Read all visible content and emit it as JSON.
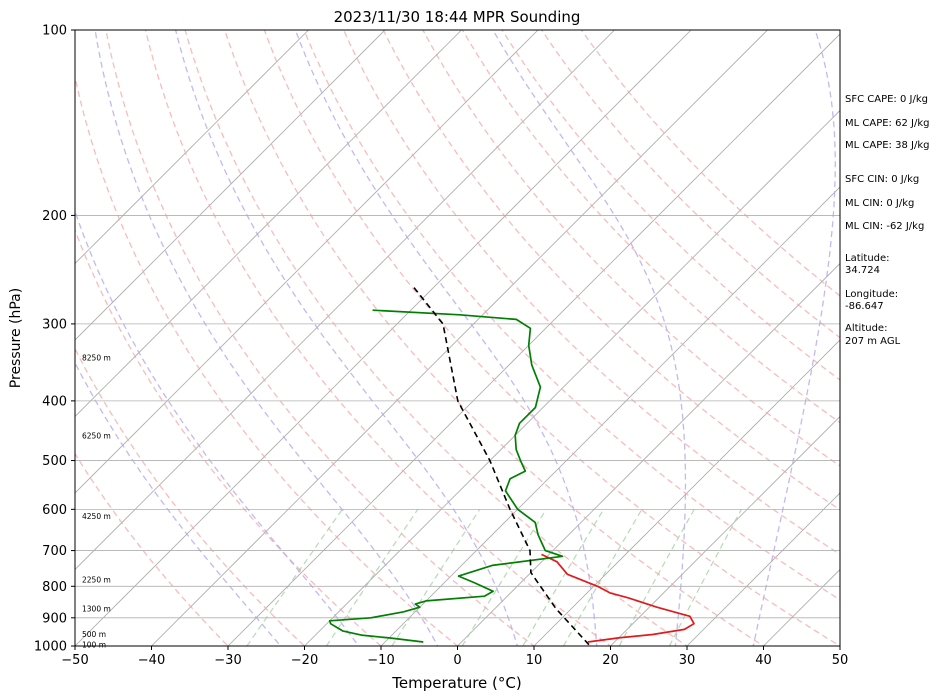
{
  "chart_data": {
    "type": "line",
    "title": "2023/11/30 18:44 MPR Sounding",
    "xlabel": "Temperature (°C)",
    "ylabel": "Pressure (hPa)",
    "xlim": [
      -50,
      50
    ],
    "ylim": [
      1000,
      100
    ],
    "y_scale": "log",
    "x_ticks": [
      "−50",
      "−40",
      "−30",
      "−20",
      "−10",
      "0",
      "10",
      "20",
      "30",
      "40",
      "50"
    ],
    "y_ticks": [
      "1000",
      "900",
      "800",
      "700",
      "600",
      "500",
      "400",
      "300",
      "200",
      "100"
    ],
    "grid": true,
    "height_labels": [
      {
        "text": "100 m",
        "p": 995
      },
      {
        "text": "500 m",
        "p": 957
      },
      {
        "text": "1300 m",
        "p": 870
      },
      {
        "text": "2250 m",
        "p": 780
      },
      {
        "text": "4250 m",
        "p": 615
      },
      {
        "text": "6250 m",
        "p": 455
      },
      {
        "text": "8250 m",
        "p": 340
      }
    ],
    "series": [
      {
        "role": "temperature",
        "color": "#e31a1c",
        "points": [
          [
            16.5,
            985
          ],
          [
            20,
            970
          ],
          [
            24,
            958
          ],
          [
            27.5,
            940
          ],
          [
            28,
            920
          ],
          [
            26.5,
            895
          ],
          [
            21,
            865
          ],
          [
            16,
            835
          ],
          [
            13,
            820
          ],
          [
            10.5,
            800
          ],
          [
            5,
            765
          ],
          [
            2,
            730
          ],
          [
            -1,
            710
          ]
        ]
      },
      {
        "role": "dewpoint",
        "color": "#007f00",
        "points": [
          [
            -5,
            985
          ],
          [
            -10,
            970
          ],
          [
            -14,
            960
          ],
          [
            -17,
            945
          ],
          [
            -19.5,
            920
          ],
          [
            -20,
            910
          ],
          [
            -15,
            900
          ],
          [
            -11.5,
            880
          ],
          [
            -10,
            865
          ],
          [
            -11,
            855
          ],
          [
            -10,
            845
          ],
          [
            -3,
            830
          ],
          [
            -2.5,
            815
          ],
          [
            -6,
            790
          ],
          [
            -9,
            770
          ],
          [
            -6,
            740
          ],
          [
            2,
            715
          ],
          [
            -1,
            700
          ],
          [
            -4,
            660
          ],
          [
            -6,
            630
          ],
          [
            -10,
            600
          ],
          [
            -14,
            560
          ],
          [
            -15,
            535
          ],
          [
            -14,
            520
          ],
          [
            -16,
            500
          ],
          [
            -18,
            480
          ],
          [
            -20,
            455
          ],
          [
            -21,
            435
          ],
          [
            -21,
            410
          ],
          [
            -23,
            380
          ],
          [
            -27,
            350
          ],
          [
            -30,
            325
          ],
          [
            -32,
            305
          ],
          [
            -35,
            295
          ],
          [
            -43,
            290
          ],
          [
            -55,
            285
          ]
        ]
      },
      {
        "role": "parcel",
        "color": "#000000",
        "style": "dashed",
        "points": [
          [
            17,
            995
          ],
          [
            8,
            870
          ],
          [
            0,
            760
          ],
          [
            -3,
            700
          ],
          [
            -11,
            600
          ],
          [
            -20,
            500
          ],
          [
            -32,
            400
          ],
          [
            -44,
            300
          ],
          [
            -53,
            260
          ]
        ]
      }
    ],
    "reference_lines": {
      "isotherm_temps": [
        -100,
        -90,
        -80,
        -70,
        -60,
        -50,
        -40,
        -30,
        -20,
        -10,
        0,
        10,
        20,
        30,
        40,
        50
      ],
      "dry_adiabat_theta_c": [
        -30,
        -20,
        -10,
        0,
        10,
        20,
        30,
        40,
        50,
        60,
        70,
        80,
        90,
        100,
        110,
        120,
        130
      ],
      "moist_adiabat_temps": [
        -20,
        -10,
        0,
        10,
        20,
        30,
        40
      ],
      "mixing_ratio_gkg": [
        0.4,
        1,
        2,
        4,
        7,
        10,
        16,
        24
      ]
    }
  },
  "info_panel": {
    "sfc_cape": "SFC CAPE: 0 J/kg",
    "ml_cape_1": "ML CAPE: 62 J/kg",
    "ml_cape_2": "ML CAPE: 38 J/kg",
    "sfc_cin": "SFC CIN: 0 J/kg",
    "ml_cin_1": "ML CIN: 0 J/kg",
    "ml_cin_2": "ML CIN: -62 J/kg",
    "latitude_label": "Latitude:",
    "latitude_value": "34.724",
    "longitude_label": "Longitude:",
    "longitude_value": "-86.647",
    "altitude_label": "Altitude:",
    "altitude_value": "207 m AGL"
  },
  "colors": {
    "isotherm": "#aaaaaa",
    "dry_adiabat": "#f4a6a6",
    "moist_adiabat": "#b3a6f0",
    "mixing_ratio": "#9ccf9c"
  }
}
